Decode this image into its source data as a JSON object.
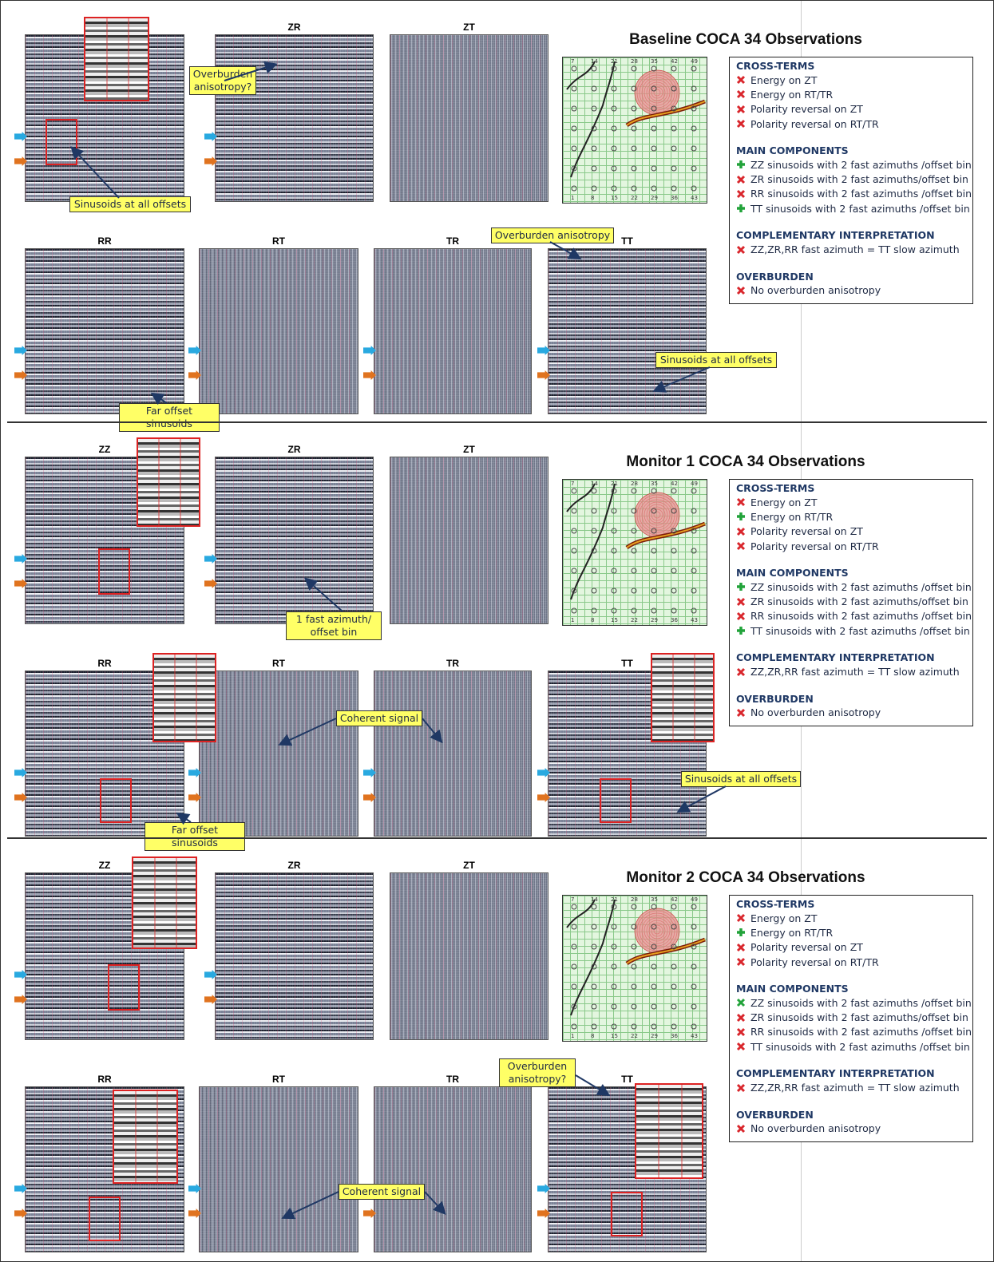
{
  "panels": [
    {
      "title": "Baseline COCA 34 Observations",
      "gathers": [
        null,
        "ZR",
        "ZT",
        "RR",
        "RT",
        "TR",
        "TT"
      ],
      "map_labels_top": [
        "7",
        "14",
        "21",
        "28",
        "35",
        "42",
        "49"
      ],
      "map_labels_bottom": [
        "1",
        "8",
        "15",
        "22",
        "29",
        "36",
        "43"
      ],
      "callouts": [
        "Overburden anisotropy?",
        "Sinusoids at all offsets",
        "Overburden anisotropy",
        "Sinusoids at all offsets",
        "Far offset sinusoids"
      ],
      "observations": [
        {
          "heading": "CROSS-TERMS",
          "items": [
            {
              "icon": "cross",
              "color": "#d9262c",
              "text": "Energy on ZT"
            },
            {
              "icon": "cross",
              "color": "#d9262c",
              "text": "Energy on RT/TR"
            },
            {
              "icon": "cross",
              "color": "#d9262c",
              "text": "Polarity reversal on ZT"
            },
            {
              "icon": "cross",
              "color": "#d9262c",
              "text": "Polarity reversal on RT/TR"
            }
          ]
        },
        {
          "heading": "MAIN COMPONENTS",
          "items": [
            {
              "icon": "plus",
              "color": "#22a33a",
              "text": "ZZ sinusoids with 2 fast azimuths /offset bin"
            },
            {
              "icon": "cross",
              "color": "#d9262c",
              "text": "ZR sinusoids with 2 fast azimuths/offset bin"
            },
            {
              "icon": "cross",
              "color": "#d9262c",
              "text": "RR sinusoids with 2 fast azimuths /offset bin"
            },
            {
              "icon": "plus",
              "color": "#22a33a",
              "text": "TT sinusoids with 2 fast azimuths /offset bin"
            }
          ]
        },
        {
          "heading": "COMPLEMENTARY INTERPRETATION",
          "items": [
            {
              "icon": "cross",
              "color": "#d9262c",
              "text": "ZZ,ZR,RR fast azimuth =  TT slow azimuth"
            }
          ]
        },
        {
          "heading": "OVERBURDEN",
          "items": [
            {
              "icon": "cross",
              "color": "#d9262c",
              "text": "No overburden anisotropy"
            }
          ]
        }
      ]
    },
    {
      "title": "Monitor 1 COCA 34 Observations",
      "gathers": [
        "ZZ",
        "ZR",
        "ZT",
        "RR",
        "RT",
        "TR",
        "TT"
      ],
      "map_labels_top": [
        "7",
        "14",
        "21",
        "28",
        "35",
        "42",
        "49"
      ],
      "map_labels_bottom": [
        "1",
        "8",
        "15",
        "22",
        "29",
        "36",
        "43"
      ],
      "callouts": [
        "1 fast azimuth/ offset bin",
        "Coherent signal",
        "Sinusoids at all offsets",
        "Far offset sinusoids"
      ],
      "observations": [
        {
          "heading": "CROSS-TERMS",
          "items": [
            {
              "icon": "cross",
              "color": "#d9262c",
              "text": "Energy on ZT"
            },
            {
              "icon": "plus",
              "color": "#22a33a",
              "text": "Energy on RT/TR"
            },
            {
              "icon": "cross",
              "color": "#d9262c",
              "text": "Polarity reversal on ZT"
            },
            {
              "icon": "cross",
              "color": "#d9262c",
              "text": "Polarity reversal on RT/TR"
            }
          ]
        },
        {
          "heading": "MAIN COMPONENTS",
          "items": [
            {
              "icon": "plus",
              "color": "#22a33a",
              "text": "ZZ sinusoids with 2 fast azimuths /offset bin"
            },
            {
              "icon": "cross",
              "color": "#d9262c",
              "text": "ZR sinusoids with 2 fast azimuths/offset bin"
            },
            {
              "icon": "cross",
              "color": "#d9262c",
              "text": "RR sinusoids with 2 fast azimuths /offset bin"
            },
            {
              "icon": "plus",
              "color": "#22a33a",
              "text": "TT sinusoids with 2 fast azimuths /offset bin"
            }
          ]
        },
        {
          "heading": "COMPLEMENTARY INTERPRETATION",
          "items": [
            {
              "icon": "cross",
              "color": "#d9262c",
              "text": "ZZ,ZR,RR fast azimuth =  TT slow azimuth"
            }
          ]
        },
        {
          "heading": "OVERBURDEN",
          "items": [
            {
              "icon": "cross",
              "color": "#d9262c",
              "text": "No overburden anisotropy"
            }
          ]
        }
      ]
    },
    {
      "title": "Monitor 2 COCA 34 Observations",
      "gathers": [
        "ZZ",
        "ZR",
        "ZT",
        "RR",
        "RT",
        "TR",
        "TT"
      ],
      "map_labels_top": [
        "7",
        "14",
        "21",
        "28",
        "35",
        "42",
        "49"
      ],
      "map_labels_bottom": [
        "1",
        "8",
        "15",
        "22",
        "29",
        "36",
        "43"
      ],
      "callouts": [
        "Overburden anisotropy?",
        "Coherent signal"
      ],
      "observations": [
        {
          "heading": "CROSS-TERMS",
          "items": [
            {
              "icon": "cross",
              "color": "#d9262c",
              "text": "Energy on ZT"
            },
            {
              "icon": "plus",
              "color": "#22a33a",
              "text": "Energy on RT/TR"
            },
            {
              "icon": "cross",
              "color": "#d9262c",
              "text": "Polarity reversal on ZT"
            },
            {
              "icon": "cross",
              "color": "#d9262c",
              "text": "Polarity reversal on RT/TR"
            }
          ]
        },
        {
          "heading": "MAIN COMPONENTS",
          "items": [
            {
              "icon": "cross",
              "color": "#22a33a",
              "text": "ZZ sinusoids with 2 fast azimuths /offset bin"
            },
            {
              "icon": "cross",
              "color": "#d9262c",
              "text": "ZR sinusoids with 2 fast azimuths/offset bin"
            },
            {
              "icon": "cross",
              "color": "#d9262c",
              "text": "RR sinusoids with 2 fast azimuths /offset bin"
            },
            {
              "icon": "cross",
              "color": "#d9262c",
              "text": "TT sinusoids with 2 fast azimuths /offset bin"
            }
          ]
        },
        {
          "heading": "COMPLEMENTARY INTERPRETATION",
          "items": [
            {
              "icon": "cross",
              "color": "#d9262c",
              "text": "ZZ,ZR,RR fast azimuth =  TT slow azimuth"
            }
          ]
        },
        {
          "heading": "OVERBURDEN",
          "items": [
            {
              "icon": "cross",
              "color": "#d9262c",
              "text": "No overburden anisotropy"
            }
          ]
        }
      ]
    }
  ]
}
